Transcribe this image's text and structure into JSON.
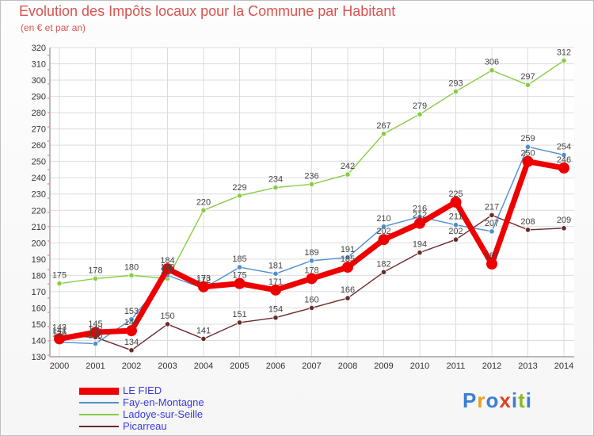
{
  "chart_data": {
    "type": "line",
    "title": "Evolution des Impôts locaux pour la Commune par Habitant",
    "subtitle": "(en € et par an)",
    "x": [
      "2000",
      "2001",
      "2002",
      "2003",
      "2004",
      "2005",
      "2006",
      "2007",
      "2008",
      "2009",
      "2010",
      "2011",
      "2012",
      "2013",
      "2014"
    ],
    "y_ticks": [
      130,
      140,
      150,
      160,
      170,
      180,
      190,
      200,
      210,
      220,
      230,
      240,
      250,
      260,
      270,
      280,
      290,
      300,
      310,
      320
    ],
    "ylim": [
      130,
      320
    ],
    "grid": true,
    "legend_position": "bottom-left",
    "series": [
      {
        "name": "LE FIED",
        "color": "#ee0000",
        "values": [
          141,
          145,
          146,
          184,
          173,
          175,
          171,
          178,
          185,
          202,
          212,
          225,
          187,
          250,
          246
        ],
        "labels": [
          "141",
          "145",
          "146",
          "184",
          "173",
          "175",
          "171",
          "178",
          "185",
          "202",
          "212",
          "225",
          "187",
          "250",
          "246"
        ]
      },
      {
        "name": "Fay-en-Montagne",
        "color": "#4f8fcf",
        "values": [
          139,
          138,
          153,
          180,
          172,
          185,
          181,
          189,
          191,
          210,
          216,
          211,
          207,
          259,
          254
        ],
        "labels": [
          "139",
          "138",
          "153",
          "180",
          "172",
          "185",
          "181",
          "189",
          "191",
          "210",
          "216",
          "211",
          "207",
          "259",
          "254"
        ]
      },
      {
        "name": "Ladoye-sur-Seille",
        "color": "#88cc44",
        "values": [
          175,
          178,
          180,
          178,
          220,
          229,
          234,
          236,
          242,
          267,
          279,
          293,
          306,
          297,
          312
        ],
        "labels": [
          "175",
          "178",
          "180",
          "178",
          "220",
          "229",
          "234",
          "236",
          "242",
          "267",
          "279",
          "293",
          "306",
          "297",
          "312"
        ]
      },
      {
        "name": "Picarreau",
        "color": "#6b2a2a",
        "values": [
          143,
          142,
          134,
          150,
          141,
          151,
          154,
          160,
          166,
          182,
          194,
          202,
          217,
          208,
          209
        ],
        "labels": [
          "143",
          "142",
          "134",
          "150",
          "141",
          "151",
          "154",
          "160",
          "166",
          "182",
          "194",
          "202",
          "217",
          "208",
          "209"
        ]
      }
    ]
  },
  "logo": {
    "letters": [
      "P",
      "r",
      "o",
      "x",
      "i",
      "t",
      "i"
    ],
    "colors": [
      "#3a7fd5",
      "#e8a020",
      "#3a7fd5",
      "#e04020",
      "#3a7fd5",
      "#88bb22",
      "#3a7fd5"
    ]
  }
}
